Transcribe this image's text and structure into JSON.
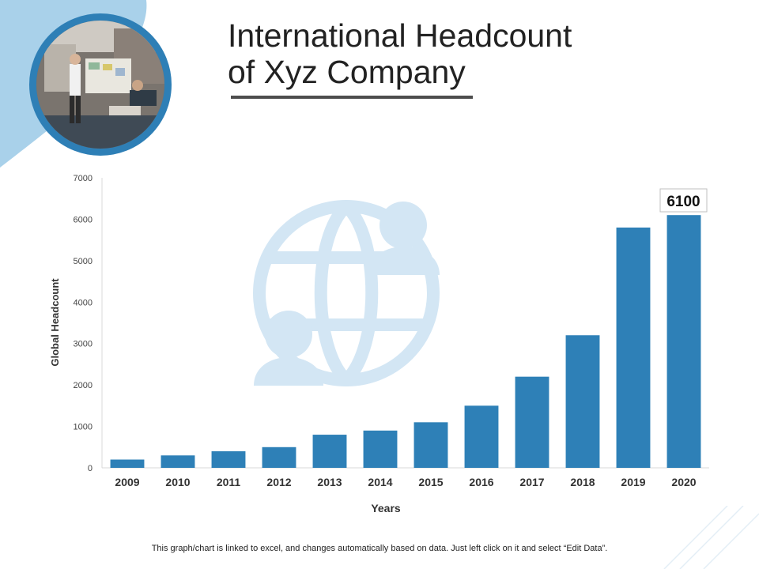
{
  "title_lines": [
    "International Headcount",
    "of Xyz Company"
  ],
  "colors": {
    "bar": "#2e80b7",
    "accent_light": "#a9d1ea",
    "watermark": "#d3e6f4",
    "photo_border": "#2e7fb6",
    "axis": "#d9d9d9",
    "text": "#222222"
  },
  "chart_data": {
    "type": "bar",
    "categories": [
      "2009",
      "2010",
      "2011",
      "2012",
      "2013",
      "2014",
      "2015",
      "2016",
      "2017",
      "2018",
      "2019",
      "2020"
    ],
    "values": [
      200,
      300,
      400,
      500,
      800,
      900,
      1100,
      1500,
      2200,
      3200,
      5800,
      6100
    ],
    "xlabel": "Years",
    "ylabel": "Global Headcount",
    "ylim": [
      0,
      7000
    ],
    "yticks": [
      "0",
      "1000",
      "2000",
      "3000",
      "4000",
      "5000",
      "6000",
      "7000"
    ],
    "callout": "6100",
    "grid": false,
    "legend": "none"
  },
  "footnote": "This graph/chart is linked to excel, and changes automatically based on data. Just left click on it and select “Edit Data”.",
  "icons": [
    "globe-people-icon"
  ]
}
